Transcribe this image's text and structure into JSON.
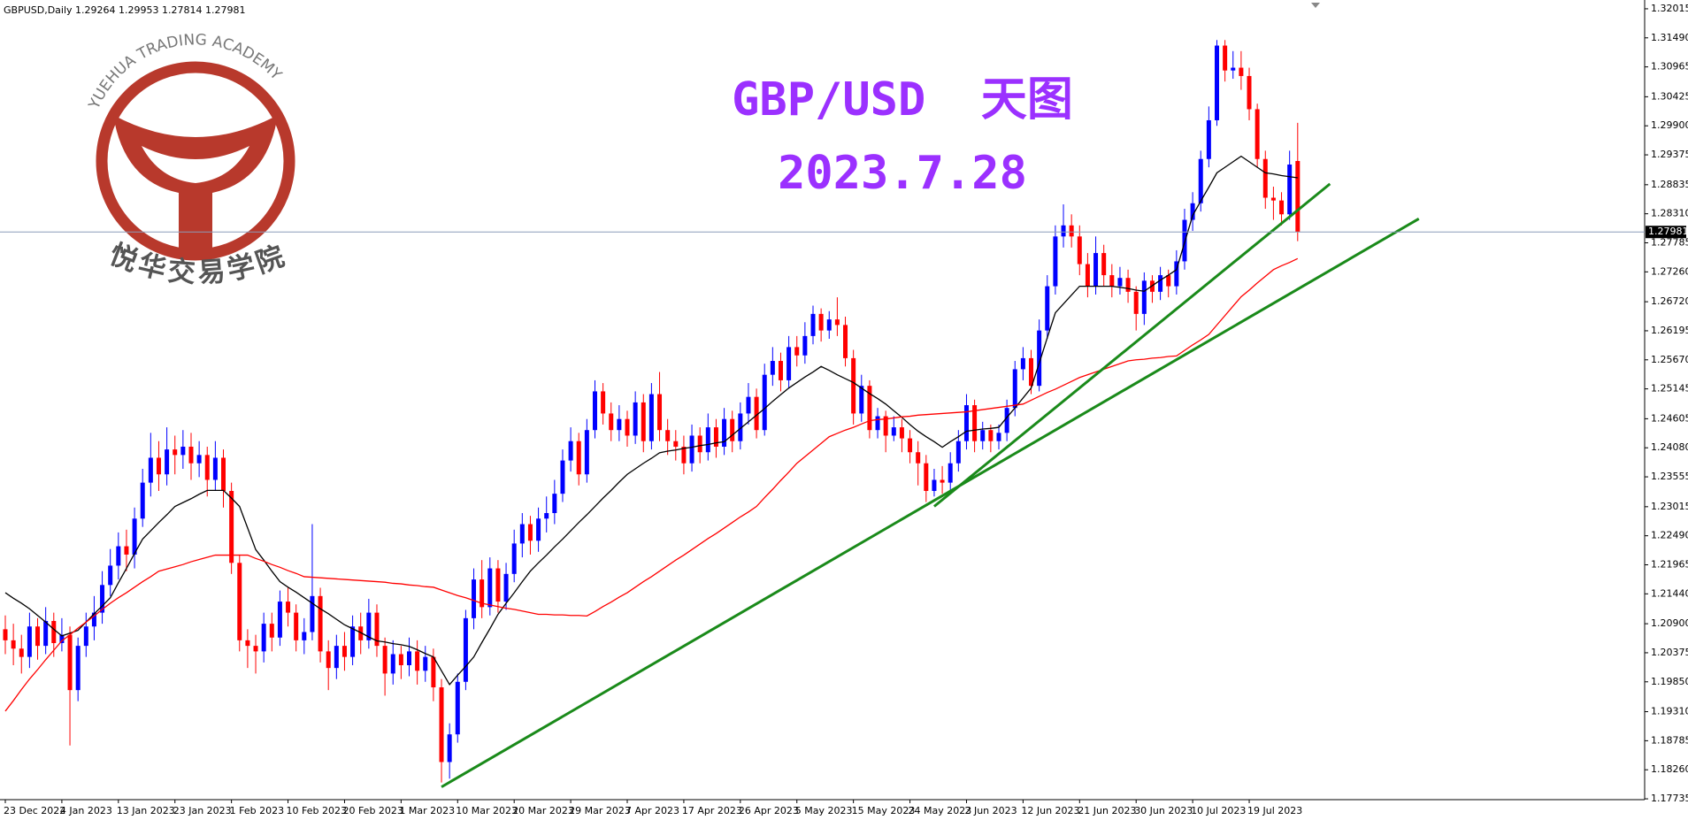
{
  "chart_data": {
    "type": "candlestick",
    "symbol_info": "GBPUSD,Daily  1.29264 1.29953 1.27814 1.27981",
    "title": "GBP/USD  天图",
    "subtitle": "2023.7.28",
    "logo": {
      "text_en": "YUEHUA TRADING ACADEMY",
      "text_cn": "悦华交易学院"
    },
    "up_color": "#0000ff",
    "down_color": "#ff0000",
    "categories": [
      "23 Dec 2022",
      null,
      null,
      null,
      null,
      null,
      null,
      "4 Jan 2023",
      null,
      null,
      null,
      null,
      null,
      null,
      "13 Jan 2023",
      null,
      null,
      null,
      null,
      null,
      null,
      "23 Jan 2023",
      null,
      null,
      null,
      null,
      null,
      null,
      "1 Feb 2023",
      null,
      null,
      null,
      null,
      null,
      null,
      "10 Feb 2023",
      null,
      null,
      null,
      null,
      null,
      null,
      "20 Feb 2023",
      null,
      null,
      null,
      null,
      null,
      null,
      "1 Mar 2023",
      null,
      null,
      null,
      null,
      null,
      null,
      "10 Mar 2023",
      null,
      null,
      null,
      null,
      null,
      null,
      "20 Mar 2023",
      null,
      null,
      null,
      null,
      null,
      null,
      "29 Mar 2023",
      null,
      null,
      null,
      null,
      null,
      null,
      "7 Apr 2023",
      null,
      null,
      null,
      null,
      null,
      null,
      "17 Apr 2023",
      null,
      null,
      null,
      null,
      null,
      null,
      "26 Apr 2023",
      null,
      null,
      null,
      null,
      null,
      null,
      "5 May 2023",
      null,
      null,
      null,
      null,
      null,
      null,
      "15 May 2023",
      null,
      null,
      null,
      null,
      null,
      null,
      "24 May 2023",
      null,
      null,
      null,
      null,
      null,
      null,
      "2 Jun 2023",
      null,
      null,
      null,
      null,
      null,
      null,
      "12 Jun 2023",
      null,
      null,
      null,
      null,
      null,
      null,
      "21 Jun 2023",
      null,
      null,
      null,
      null,
      null,
      null,
      "30 Jun 2023",
      null,
      null,
      null,
      null,
      null,
      null,
      "10 Jul 2023",
      null,
      null,
      null,
      null,
      null,
      null,
      "19 Jul 2023",
      null,
      null,
      null,
      null,
      null,
      null
    ],
    "open": [
      1.208,
      1.206,
      1.2045,
      1.203,
      1.2085,
      1.205,
      1.2095,
      1.2055,
      1.207,
      1.197,
      1.205,
      1.2085,
      1.211,
      1.216,
      1.2195,
      1.223,
      1.2215,
      1.228,
      1.2345,
      1.239,
      1.236,
      1.2405,
      1.2395,
      1.241,
      1.238,
      1.2395,
      1.235,
      1.239,
      1.233,
      1.22,
      1.206,
      1.205,
      1.204,
      1.209,
      1.2065,
      1.213,
      1.211,
      1.206,
      1.2075,
      1.214,
      1.204,
      1.201,
      1.205,
      1.203,
      1.2085,
      1.206,
      1.211,
      1.205,
      1.2,
      1.2035,
      1.2015,
      1.204,
      1.2005,
      1.203,
      1.1975,
      1.184,
      1.189,
      1.1985,
      1.21,
      1.217,
      1.212,
      1.219,
      1.213,
      1.218,
      1.2235,
      1.227,
      1.224,
      1.228,
      1.229,
      1.2325,
      1.2385,
      1.242,
      1.236,
      1.244,
      1.251,
      1.247,
      1.244,
      1.246,
      1.243,
      1.249,
      1.242,
      1.2505,
      1.244,
      1.242,
      1.241,
      1.238,
      1.243,
      1.24,
      1.2445,
      1.241,
      1.246,
      1.242,
      1.247,
      1.25,
      1.244,
      1.254,
      1.2565,
      1.253,
      1.259,
      1.2575,
      1.261,
      1.265,
      1.262,
      1.264,
      1.263,
      1.257,
      1.247,
      1.252,
      1.244,
      1.2465,
      1.243,
      1.2445,
      1.2425,
      1.24,
      1.238,
      1.233,
      1.235,
      1.2345,
      1.238,
      1.242,
      1.2485,
      1.242,
      1.244,
      1.242,
      1.2435,
      1.248,
      1.255,
      1.257,
      1.252,
      1.262,
      1.27,
      1.279,
      1.281,
      1.279,
      1.274,
      1.27,
      1.276,
      1.272,
      1.27,
      1.2715,
      1.269,
      1.265,
      1.271,
      1.269,
      1.272,
      1.27,
      1.2745,
      1.282,
      1.285,
      1.293,
      1.3,
      1.3135,
      1.309,
      1.3095,
      1.308,
      1.302,
      1.293,
      1.286,
      1.2855,
      1.283,
      1.29264
    ],
    "high": [
      1.2105,
      1.209,
      1.207,
      1.211,
      1.21,
      1.212,
      1.211,
      1.21,
      1.2085,
      1.2065,
      1.211,
      1.214,
      1.2185,
      1.2225,
      1.2255,
      1.226,
      1.23,
      1.237,
      1.2435,
      1.242,
      1.2445,
      1.243,
      1.244,
      1.2435,
      1.242,
      1.241,
      1.242,
      1.2405,
      1.2345,
      1.2215,
      1.208,
      1.207,
      1.211,
      1.211,
      1.215,
      1.2155,
      1.2125,
      1.21,
      1.227,
      1.2155,
      1.206,
      1.207,
      1.2075,
      1.2105,
      1.211,
      1.2135,
      1.2125,
      1.2065,
      1.206,
      1.205,
      1.2065,
      1.206,
      1.205,
      1.2045,
      1.199,
      1.191,
      1.2,
      1.2115,
      1.219,
      1.2205,
      1.221,
      1.2205,
      1.22,
      1.226,
      1.229,
      1.2285,
      1.23,
      1.232,
      1.235,
      1.2405,
      1.2445,
      1.2435,
      1.246,
      1.253,
      1.2525,
      1.249,
      1.2485,
      1.2475,
      1.251,
      1.2505,
      1.2525,
      1.2545,
      1.246,
      1.244,
      1.243,
      1.245,
      1.2445,
      1.247,
      1.246,
      1.248,
      1.2475,
      1.249,
      1.2525,
      1.2515,
      1.256,
      1.259,
      1.258,
      1.261,
      1.261,
      1.2635,
      1.2665,
      1.266,
      1.2655,
      1.268,
      1.2645,
      1.2585,
      1.254,
      1.253,
      1.248,
      1.2475,
      1.2465,
      1.246,
      1.244,
      1.242,
      1.2395,
      1.237,
      1.2375,
      1.24,
      1.244,
      1.2505,
      1.2495,
      1.2455,
      1.245,
      1.245,
      1.2495,
      1.2565,
      1.259,
      1.2585,
      1.264,
      1.272,
      1.281,
      1.2848,
      1.283,
      1.281,
      1.276,
      1.279,
      1.2775,
      1.274,
      1.2735,
      1.273,
      1.27,
      1.2725,
      1.272,
      1.2735,
      1.273,
      1.2765,
      1.284,
      1.287,
      1.2945,
      1.3025,
      1.3145,
      1.3145,
      1.3125,
      1.3125,
      1.3095,
      1.303,
      1.2945,
      1.288,
      1.287,
      1.2945,
      1.29953
    ],
    "low": [
      1.2035,
      1.2015,
      1.2,
      1.201,
      1.2025,
      1.2035,
      1.203,
      1.204,
      1.187,
      1.195,
      1.203,
      1.206,
      1.209,
      1.214,
      1.217,
      1.2185,
      1.219,
      1.2265,
      1.232,
      1.233,
      1.234,
      1.236,
      1.237,
      1.235,
      1.2355,
      1.232,
      1.233,
      1.23,
      1.218,
      1.204,
      1.201,
      1.2,
      1.202,
      1.204,
      1.205,
      1.2085,
      1.204,
      1.2035,
      1.206,
      1.202,
      1.197,
      1.199,
      1.2005,
      1.2015,
      1.2035,
      1.2045,
      1.203,
      1.196,
      1.198,
      1.199,
      1.1995,
      1.198,
      1.1985,
      1.195,
      1.1803,
      1.181,
      1.1875,
      1.197,
      1.208,
      1.21,
      1.2105,
      1.211,
      1.2115,
      1.2165,
      1.221,
      1.2215,
      1.222,
      1.2255,
      1.227,
      1.231,
      1.2365,
      1.234,
      1.2345,
      1.2425,
      1.245,
      1.242,
      1.242,
      1.241,
      1.2415,
      1.24,
      1.2405,
      1.242,
      1.2395,
      1.2385,
      1.236,
      1.2365,
      1.238,
      1.2385,
      1.239,
      1.2395,
      1.24,
      1.2405,
      1.245,
      1.2425,
      1.243,
      1.252,
      1.251,
      1.2515,
      1.2555,
      1.256,
      1.2595,
      1.26,
      1.2605,
      1.261,
      1.2555,
      1.245,
      1.2455,
      1.2425,
      1.2425,
      1.24,
      1.242,
      1.24,
      1.238,
      1.234,
      1.231,
      1.232,
      1.2325,
      1.233,
      1.2365,
      1.2405,
      1.24,
      1.2405,
      1.24,
      1.2405,
      1.242,
      1.2465,
      1.253,
      1.2505,
      1.251,
      1.2605,
      1.2685,
      1.277,
      1.277,
      1.272,
      1.268,
      1.2685,
      1.27,
      1.268,
      1.2685,
      1.267,
      1.262,
      1.263,
      1.267,
      1.2675,
      1.268,
      1.2685,
      1.273,
      1.28,
      1.2835,
      1.2915,
      1.299,
      1.307,
      1.3075,
      1.3055,
      1.3,
      1.2915,
      1.284,
      1.282,
      1.281,
      1.282,
      1.27814
    ],
    "close": [
      1.206,
      1.2045,
      1.203,
      1.2085,
      1.205,
      1.2095,
      1.2055,
      1.207,
      1.197,
      1.205,
      1.2085,
      1.211,
      1.216,
      1.2195,
      1.223,
      1.2215,
      1.228,
      1.2345,
      1.239,
      1.236,
      1.2405,
      1.2395,
      1.241,
      1.238,
      1.2395,
      1.235,
      1.239,
      1.233,
      1.22,
      1.206,
      1.205,
      1.204,
      1.209,
      1.2065,
      1.213,
      1.211,
      1.206,
      1.2075,
      1.214,
      1.204,
      1.201,
      1.205,
      1.203,
      1.2085,
      1.206,
      1.211,
      1.205,
      1.2,
      1.2035,
      1.2015,
      1.204,
      1.2005,
      1.203,
      1.1975,
      1.184,
      1.189,
      1.1985,
      1.21,
      1.217,
      1.212,
      1.219,
      1.213,
      1.218,
      1.2235,
      1.227,
      1.224,
      1.228,
      1.229,
      1.2325,
      1.2385,
      1.242,
      1.236,
      1.244,
      1.251,
      1.247,
      1.244,
      1.246,
      1.243,
      1.249,
      1.242,
      1.2505,
      1.244,
      1.242,
      1.241,
      1.238,
      1.243,
      1.24,
      1.2445,
      1.241,
      1.246,
      1.242,
      1.247,
      1.25,
      1.244,
      1.254,
      1.2565,
      1.253,
      1.259,
      1.2575,
      1.261,
      1.265,
      1.262,
      1.264,
      1.263,
      1.257,
      1.247,
      1.252,
      1.244,
      1.2465,
      1.243,
      1.2445,
      1.2425,
      1.24,
      1.238,
      1.233,
      1.235,
      1.2345,
      1.238,
      1.242,
      1.2485,
      1.242,
      1.244,
      1.242,
      1.2435,
      1.248,
      1.255,
      1.257,
      1.252,
      1.262,
      1.27,
      1.279,
      1.281,
      1.279,
      1.274,
      1.27,
      1.276,
      1.272,
      1.27,
      1.2715,
      1.269,
      1.265,
      1.271,
      1.269,
      1.272,
      1.27,
      1.2745,
      1.282,
      1.285,
      1.293,
      1.3,
      1.3135,
      1.309,
      1.3095,
      1.308,
      1.302,
      1.293,
      1.286,
      1.2855,
      1.283,
      1.292,
      1.27981
    ],
    "lines": [
      {
        "color": "#000000",
        "values": [
          1.2146,
          1.2136,
          1.2127,
          1.2117,
          1.2105,
          1.2093,
          1.208,
          1.2068,
          1.2073,
          1.2078,
          1.2093,
          1.2108,
          1.2122,
          1.2137,
          1.2164,
          1.219,
          1.2217,
          1.2243,
          1.2258,
          1.2273,
          1.2287,
          1.2302,
          1.2309,
          1.2316,
          1.2324,
          1.2331,
          1.2331,
          1.2331,
          1.2317,
          1.2302,
          1.2263,
          1.2224,
          1.2205,
          1.2185,
          1.2166,
          1.2156,
          1.2147,
          1.2137,
          1.2127,
          1.2117,
          1.2108,
          1.2098,
          1.2088,
          1.2081,
          1.2074,
          1.2066,
          1.2059,
          1.2057,
          1.2054,
          1.2052,
          1.2049,
          1.2043,
          1.2036,
          1.203,
          1.2005,
          1.198,
          1.1997,
          1.2013,
          1.203,
          1.2056,
          1.2081,
          1.2107,
          1.2127,
          1.2146,
          1.2166,
          1.2185,
          1.22,
          1.2214,
          1.2229,
          1.2243,
          1.2258,
          1.2273,
          1.2287,
          1.2302,
          1.2317,
          1.2331,
          1.2346,
          1.236,
          1.237,
          1.238,
          1.2389,
          1.2399,
          1.2402,
          1.2404,
          1.2407,
          1.2409,
          1.2412,
          1.2414,
          1.2417,
          1.2419,
          1.2431,
          1.2443,
          1.2455,
          1.2467,
          1.2479,
          1.2492,
          1.2504,
          1.2516,
          1.2526,
          1.2536,
          1.2545,
          1.2555,
          1.2548,
          1.254,
          1.2533,
          1.2526,
          1.2516,
          1.2506,
          1.2497,
          1.2487,
          1.2475,
          1.2463,
          1.245,
          1.2438,
          1.2428,
          1.2419,
          1.2409,
          1.2419,
          1.2428,
          1.2438,
          1.244,
          1.2442,
          1.2443,
          1.2445,
          1.2463,
          1.248,
          1.2498,
          1.2516,
          1.2561,
          1.2607,
          1.2652,
          1.2668,
          1.2684,
          1.27,
          1.27,
          1.27,
          1.27,
          1.27,
          1.2698,
          1.2696,
          1.2693,
          1.2691,
          1.2701,
          1.2711,
          1.272,
          1.273,
          1.2779,
          1.2828,
          1.2854,
          1.2879,
          1.2905,
          1.2915,
          1.2925,
          1.2935,
          1.2925,
          1.2915,
          1.2905,
          1.2903,
          1.29,
          1.2898,
          1.2896
        ]
      },
      {
        "color": "#ff0000",
        "values": [
          1.1932,
          1.1951,
          1.1971,
          1.199,
          1.2007,
          1.2025,
          1.2042,
          1.2059,
          1.207,
          1.2082,
          1.2093,
          1.2104,
          1.2116,
          1.2127,
          1.2137,
          1.2146,
          1.2156,
          1.2166,
          1.2175,
          1.2185,
          1.2189,
          1.2193,
          1.2197,
          1.2202,
          1.2206,
          1.221,
          1.2214,
          1.2214,
          1.2214,
          1.2214,
          1.2214,
          1.2208,
          1.2203,
          1.2197,
          1.2192,
          1.2186,
          1.2181,
          1.2175,
          1.2174,
          1.2173,
          1.2172,
          1.2171,
          1.217,
          1.2169,
          1.2168,
          1.2167,
          1.2166,
          1.2165,
          1.2163,
          1.2162,
          1.216,
          1.2159,
          1.2157,
          1.2156,
          1.2151,
          1.2146,
          1.2141,
          1.2137,
          1.2132,
          1.2127,
          1.2124,
          1.2121,
          1.2118,
          1.2116,
          1.2113,
          1.211,
          1.2107,
          1.2107,
          1.2106,
          1.2106,
          1.2105,
          1.2105,
          1.2104,
          1.2112,
          1.2121,
          1.2129,
          1.2138,
          1.2146,
          1.2156,
          1.2166,
          1.2175,
          1.2185,
          1.2195,
          1.2205,
          1.2214,
          1.2224,
          1.2234,
          1.2244,
          1.2253,
          1.2263,
          1.2273,
          1.2283,
          1.2292,
          1.2302,
          1.2318,
          1.2333,
          1.2349,
          1.2364,
          1.238,
          1.2392,
          1.2404,
          1.2416,
          1.2428,
          1.2434,
          1.244,
          1.2445,
          1.2451,
          1.2457,
          1.2459,
          1.246,
          1.2462,
          1.2464,
          1.2465,
          1.2467,
          1.2468,
          1.2469,
          1.247,
          1.2471,
          1.2472,
          1.2473,
          1.2475,
          1.2477,
          1.2479,
          1.2481,
          1.2483,
          1.2485,
          1.2487,
          1.2494,
          1.2501,
          1.2508,
          1.2514,
          1.2521,
          1.2528,
          1.2535,
          1.254,
          1.2545,
          1.255,
          1.2555,
          1.256,
          1.2565,
          1.2567,
          1.2568,
          1.257,
          1.2571,
          1.2573,
          1.2574,
          1.2584,
          1.2594,
          1.2603,
          1.2613,
          1.263,
          1.2647,
          1.2664,
          1.2681,
          1.2693,
          1.2706,
          1.2718,
          1.273,
          1.2737,
          1.2743,
          1.275
        ]
      }
    ],
    "trendlines": [
      {
        "color": "#1a8a1a",
        "x": [
          54,
          175
        ],
        "y": [
          1.1795,
          1.2822
        ]
      },
      {
        "color": "#1a8a1a",
        "x": [
          115,
          164
        ],
        "y": [
          1.2302,
          1.2885
        ]
      }
    ],
    "current_price": 1.27981,
    "current_price_color": "#8a9bb8",
    "ylim": [
      1.1772,
      1.3211
    ],
    "yticks": [
      1.32015,
      {
        "value": 1.3149,
        "label": "1.31490"
      },
      1.30965,
      1.30425,
      {
        "value": 1.299,
        "label": "1.29900"
      },
      1.29375,
      1.28835,
      {
        "value": 1.2831,
        "label": "1.28310"
      },
      1.27785,
      {
        "value": 1.2726,
        "label": "1.27260"
      },
      {
        "value": 1.2672,
        "label": "1.26720"
      },
      1.26195,
      {
        "value": 1.2567,
        "label": "1.25670"
      },
      1.25145,
      1.24605,
      {
        "value": 1.2408,
        "label": "1.24080"
      },
      1.23555,
      1.23015,
      {
        "value": 1.2249,
        "label": "1.22490"
      },
      1.21965,
      {
        "value": 1.2144,
        "label": "1.21440"
      },
      {
        "value": 1.209,
        "label": "1.20900"
      },
      1.20375,
      {
        "value": 1.1985,
        "label": "1.19850"
      },
      {
        "value": 1.1931,
        "label": "1.19310"
      },
      1.18785,
      {
        "value": 1.1826,
        "label": "1.18260"
      },
      1.17735
    ],
    "grid": false
  }
}
